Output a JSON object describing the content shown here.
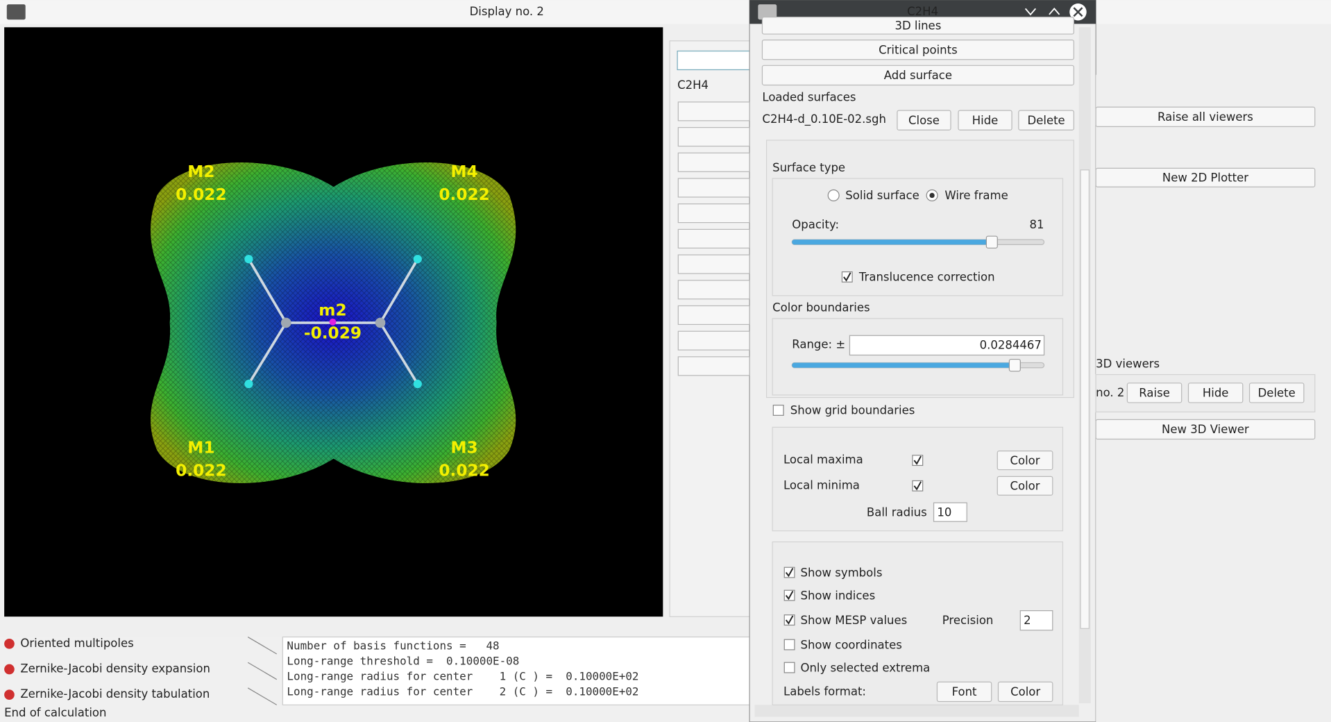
{
  "display": {
    "title": "Display no. 2",
    "molecule_label": "C2H4",
    "extrema": [
      {
        "name": "M2",
        "value": "0.022"
      },
      {
        "name": "M4",
        "value": "0.022"
      },
      {
        "name": "m2",
        "value": "-0.029"
      },
      {
        "name": "M1",
        "value": "0.022"
      },
      {
        "name": "M3",
        "value": "0.022"
      }
    ]
  },
  "task_list": [
    "Oriented multipoles",
    "Zernike-Jacobi density expansion",
    "Zernike-Jacobi density tabulation"
  ],
  "status": "End of calculation",
  "log_lines": [
    "Number of basis functions =   48",
    "Long-range threshold =  0.10000E-08",
    "Long-range radius for center    1 (C ) =  0.10000E+02",
    "Long-range radius for center    2 (C ) =  0.10000E+02"
  ],
  "dialog": {
    "title": "C2H4",
    "top_cut_button": "3D lines",
    "buttons": [
      "Critical points",
      "Add surface"
    ],
    "loaded_surfaces_label": "Loaded surfaces",
    "surface_file": "C2H4-d_0.10E-02.sgh",
    "surface_buttons": [
      "Close",
      "Hide",
      "Delete"
    ],
    "surface_type_label": "Surface type",
    "surface_type_options": [
      {
        "label": "Solid surface",
        "selected": false
      },
      {
        "label": "Wire frame",
        "selected": true
      }
    ],
    "opacity_label": "Opacity:",
    "opacity": 81,
    "translucence": {
      "label": "Translucence correction",
      "checked": true
    },
    "color_boundaries_label": "Color boundaries",
    "range_label": "Range: ±",
    "range": "0.0284467",
    "show_grid": {
      "label": "Show grid boundaries",
      "checked": false
    },
    "extrema_rows": [
      {
        "label": "Local maxima",
        "checked": true,
        "color": "#f0a030"
      },
      {
        "label": "Local minima",
        "checked": true,
        "color": "#c060f0"
      }
    ],
    "color_button": "Color",
    "ball_radius_label": "Ball radius",
    "ball_radius": 10,
    "display_options": [
      {
        "label": "Show symbols",
        "checked": true
      },
      {
        "label": "Show indices",
        "checked": true
      },
      {
        "label": "Show MESP values",
        "checked": true
      },
      {
        "label": "Show coordinates",
        "checked": false
      },
      {
        "label": "Only selected extrema",
        "checked": false
      }
    ],
    "precision_label": "Precision",
    "precision": 2,
    "labels_format_label": "Labels format:",
    "font_button": "Font"
  },
  "right_panel": {
    "raise_all": "Raise all viewers",
    "new_2d": "New 2D Plotter",
    "viewers_label": "3D viewers",
    "viewer_name": "no. 2",
    "viewer_buttons": [
      "Raise",
      "Hide",
      "Delete"
    ],
    "new_3d": "New 3D Viewer"
  }
}
